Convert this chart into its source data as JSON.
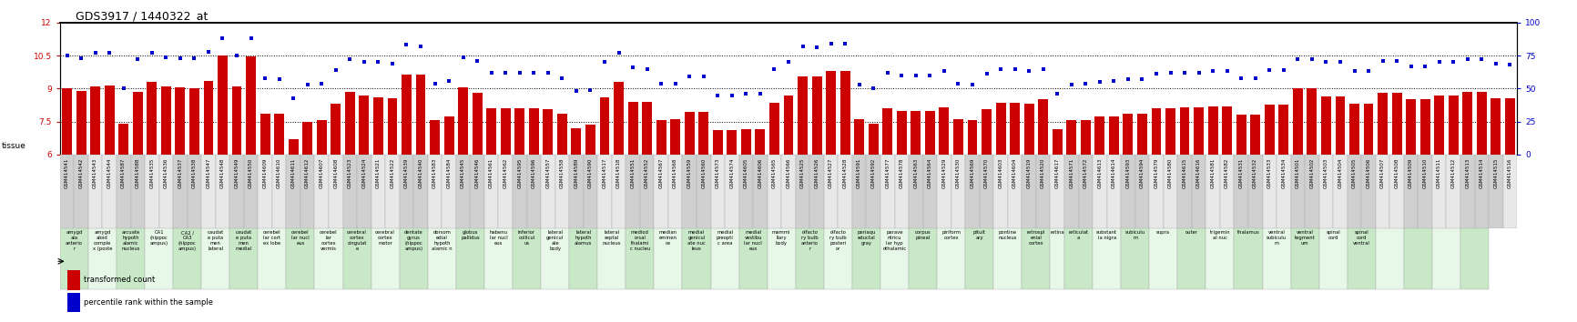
{
  "title": "GDS3917 / 1440322_at",
  "gsm_ids": [
    "GSM414541",
    "GSM414542",
    "GSM414543",
    "GSM414544",
    "GSM414587",
    "GSM414588",
    "GSM414535",
    "GSM414536",
    "GSM414537",
    "GSM414538",
    "GSM414547",
    "GSM414548",
    "GSM414549",
    "GSM414550",
    "GSM414609",
    "GSM414610",
    "GSM414611",
    "GSM414612",
    "GSM414607",
    "GSM414608",
    "GSM414523",
    "GSM414524",
    "GSM414521",
    "GSM414522",
    "GSM414539",
    "GSM414540",
    "GSM414583",
    "GSM414584",
    "GSM414545",
    "GSM414546",
    "GSM414561",
    "GSM414562",
    "GSM414595",
    "GSM414596",
    "GSM414557",
    "GSM414558",
    "GSM414589",
    "GSM414590",
    "GSM414517",
    "GSM414518",
    "GSM414551",
    "GSM414552",
    "GSM414567",
    "GSM414568",
    "GSM414559",
    "GSM414560",
    "GSM414573",
    "GSM414574",
    "GSM414605",
    "GSM414606",
    "GSM414565",
    "GSM414566",
    "GSM414525",
    "GSM414526",
    "GSM414527",
    "GSM414528",
    "GSM414591",
    "GSM414592",
    "GSM414577",
    "GSM414578",
    "GSM414563",
    "GSM414564",
    "GSM414529",
    "GSM414530",
    "GSM414569",
    "GSM414570",
    "GSM414603",
    "GSM414604",
    "GSM414519",
    "GSM414520",
    "GSM414617",
    "GSM414571",
    "GSM414572",
    "GSM414613",
    "GSM414614",
    "GSM414593",
    "GSM414594",
    "GSM414579",
    "GSM414580",
    "GSM414615",
    "GSM414616",
    "GSM414581",
    "GSM414582",
    "GSM414531",
    "GSM414532",
    "GSM414533",
    "GSM414534",
    "GSM414501",
    "GSM414502",
    "GSM414503",
    "GSM414504",
    "GSM414505",
    "GSM414506",
    "GSM414507",
    "GSM414508",
    "GSM414509",
    "GSM414510",
    "GSM414511",
    "GSM414512",
    "GSM414513",
    "GSM414514",
    "GSM414515",
    "GSM414516"
  ],
  "tissue_labels": [
    "amygd\nala\nanterio\nr",
    "amygd\nala\nanterio\nr",
    "amygd\naloid\ncomple\nx (poste",
    "amygd\naloid\ncomple\nx (poste",
    "arcuate\nhypoth\nalamic\nnucleus",
    "arcuate\nhypoth\nalamic\nnucleus",
    "CA1\n(hippoc\nampus)",
    "CA1\n(hippoc\nampus)",
    "CA2 /\nCA3\n(hippoc\nampus)",
    "CA2 /\nCA3\n(hippoc\nampus)",
    "caudat\ne puta\nmen\nlateral",
    "caudat\ne puta\nmen\nlateral",
    "caudat\ne puta\nmen\nmedial",
    "caudat\ne puta\nmen\nmedial",
    "cerebel\nlar cort\nex lobe",
    "cerebel\nlar cort\nex lobe",
    "cerebel\nlar nucl\neus",
    "cerebel\nlar nucl\neus",
    "cerebel\nlar\ncortex\nvermis",
    "cerebel\nlar\ncortex\nvermis",
    "cerebral\ncortex\ncingulat\ne",
    "cerebral\ncortex\ncingulat\ne",
    "cerebral\ncortex\nmotor",
    "cerebral\ncortex\nmotor",
    "dentate\ngyrus\n(hippoc\nampus)",
    "dentate\ngyrus\n(hippoc\nampus)",
    "dorsom\nedial\nhypoth\nalamic n",
    "dorsom\nedial\nhypoth\nalamic n",
    "globus\npallidus",
    "globus\npallidus",
    "habenu\nlar nucl\neus",
    "habenu\nlar nucl\neus",
    "inferior\ncollicul\nus",
    "inferior\ncollicul\nus",
    "lateral\ngenicul\nate\nbody",
    "lateral\ngenicul\nate\nbody",
    "lateral\nhypoth\nalamus",
    "lateral\nhypoth\nalamus",
    "lateral\nseptal\nnucleus",
    "lateral\nseptal\nnucleus",
    "mediod\norsal\nthalami\nc nucleu",
    "mediod\norsal\nthalami\nc nucleu",
    "median\neminen\nce",
    "median\neminen\nce",
    "medial\ngenicul\nate nuc\nleus",
    "medial\ngenicul\nate nuc\nleus",
    "medial\npreopti\nc area",
    "medial\npreopti\nc area",
    "medial\nvestibu\nlar nucl\neus",
    "medial\nvestibu\nlar nucl\neus",
    "mammi\nllary\nbody",
    "mammi\nllary\nbody",
    "olfacto\nry bulb\nanterio\nr",
    "olfacto\nry bulb\nanterio\nr",
    "olfacto\nry bulb\nposteri\nor",
    "olfacto\nry bulb\nposteri\nor",
    "periaqu\neductal\ngray",
    "periaqu\neductal\ngray",
    "parave\nntricu\nlar hyp\nothalamic",
    "parave\nntricu\nlar hyp\nothalamic",
    "corpus\npineal",
    "corpus\npineal",
    "piriform\ncortex",
    "piriform\ncortex",
    "pituit\nary",
    "pituit\nary",
    "pontine\nnucleus",
    "pontine\nnucleus",
    "retrospl\nenial\ncortex",
    "retrospl\nenial\ncortex",
    "retina",
    "reticulat\na",
    "reticulat\na",
    "substant\nia nigra",
    "substant\nia nigra",
    "subiculu\nm",
    "subiculu\nm",
    "supra",
    "supra",
    "outer",
    "outer",
    "trigemin\nal nuc",
    "trigemin\nal nuc",
    "thalamus",
    "thalamus",
    "ventral\nsubiculu\nm",
    "ventral\nsubiculu\nm",
    "ventral\ntegment\num",
    "ventral\ntegment\num",
    "spinal\ncord",
    "spinal\ncord",
    "spinal\ncord\nventral",
    "spinal\ncord\nventral"
  ],
  "tissue_group_ids": [
    0,
    0,
    1,
    1,
    2,
    2,
    3,
    3,
    4,
    4,
    5,
    5,
    6,
    6,
    7,
    7,
    8,
    8,
    9,
    9,
    10,
    10,
    11,
    11,
    12,
    12,
    13,
    13,
    14,
    14,
    15,
    15,
    16,
    16,
    17,
    17,
    18,
    18,
    19,
    19,
    20,
    20,
    21,
    21,
    22,
    22,
    23,
    23,
    24,
    24,
    25,
    25,
    26,
    26,
    27,
    27,
    28,
    28,
    29,
    29,
    30,
    30,
    31,
    31,
    32,
    32,
    33,
    33,
    34,
    34,
    35,
    36,
    36,
    37,
    37,
    38,
    38,
    39,
    39,
    40,
    40,
    41,
    41,
    42,
    42,
    43,
    43,
    44,
    44,
    45,
    45,
    46,
    46,
    47,
    47,
    48,
    48,
    49,
    49,
    50,
    50
  ],
  "bar_values": [
    9.0,
    8.9,
    9.1,
    9.15,
    7.4,
    8.85,
    9.3,
    9.1,
    9.05,
    9.0,
    9.35,
    10.5,
    9.1,
    10.45,
    7.85,
    7.85,
    6.7,
    7.5,
    7.55,
    8.3,
    8.85,
    8.7,
    8.6,
    8.55,
    9.65,
    9.65,
    7.55,
    7.75,
    9.05,
    8.8,
    8.1,
    8.1,
    8.1,
    8.1,
    8.05,
    7.85,
    7.2,
    7.35,
    8.6,
    9.3,
    8.4,
    8.4,
    7.55,
    7.6,
    7.95,
    7.95,
    7.1,
    7.1,
    7.15,
    7.15,
    8.35,
    8.7,
    9.55,
    9.55,
    9.8,
    9.8,
    7.6,
    7.4,
    8.1,
    8.0,
    8.0,
    8.0,
    8.15,
    7.6,
    7.55,
    8.05,
    8.35,
    8.35,
    8.3,
    8.5,
    7.15,
    7.55,
    7.55,
    7.75,
    7.75,
    7.85,
    7.85,
    8.1,
    8.1,
    8.15,
    8.15,
    8.2,
    8.2,
    7.8,
    7.8,
    8.25,
    8.25,
    9.0,
    9.0,
    8.65,
    8.65,
    8.3,
    8.3,
    8.8,
    8.8,
    8.5,
    8.5,
    8.7,
    8.7,
    8.85,
    8.85,
    8.55,
    8.55
  ],
  "percentile_values": [
    75,
    73,
    77,
    77,
    50,
    72,
    77,
    74,
    73,
    73,
    78,
    88,
    75,
    88,
    58,
    57,
    43,
    53,
    54,
    64,
    72,
    70,
    70,
    69,
    83,
    82,
    54,
    56,
    74,
    71,
    62,
    62,
    62,
    62,
    62,
    58,
    48,
    49,
    70,
    77,
    66,
    65,
    54,
    54,
    59,
    59,
    45,
    45,
    46,
    46,
    65,
    70,
    82,
    81,
    84,
    84,
    53,
    50,
    62,
    60,
    60,
    60,
    63,
    54,
    53,
    61,
    65,
    65,
    63,
    65,
    46,
    53,
    54,
    55,
    56,
    57,
    57,
    61,
    62,
    62,
    62,
    63,
    63,
    58,
    58,
    64,
    64,
    72,
    72,
    70,
    70,
    63,
    63,
    71,
    71,
    67,
    67,
    70,
    70,
    72,
    72,
    69,
    68
  ],
  "bar_color": "#cc0000",
  "dot_color": "#0000cc",
  "gsm_box_color_odd": "#d0d0d0",
  "gsm_box_color_even": "#e8e8e8",
  "tissue_box_color_odd": "#c8e8c8",
  "tissue_box_color_even": "#e8f8e8",
  "ylim_left": [
    6,
    12
  ],
  "ylim_right": [
    0,
    100
  ],
  "yticks_left": [
    6,
    7.5,
    9,
    10.5,
    12
  ],
  "yticks_right": [
    0,
    25,
    50,
    75,
    100
  ],
  "grid_dotted_lines": [
    7.5,
    9,
    10.5
  ]
}
